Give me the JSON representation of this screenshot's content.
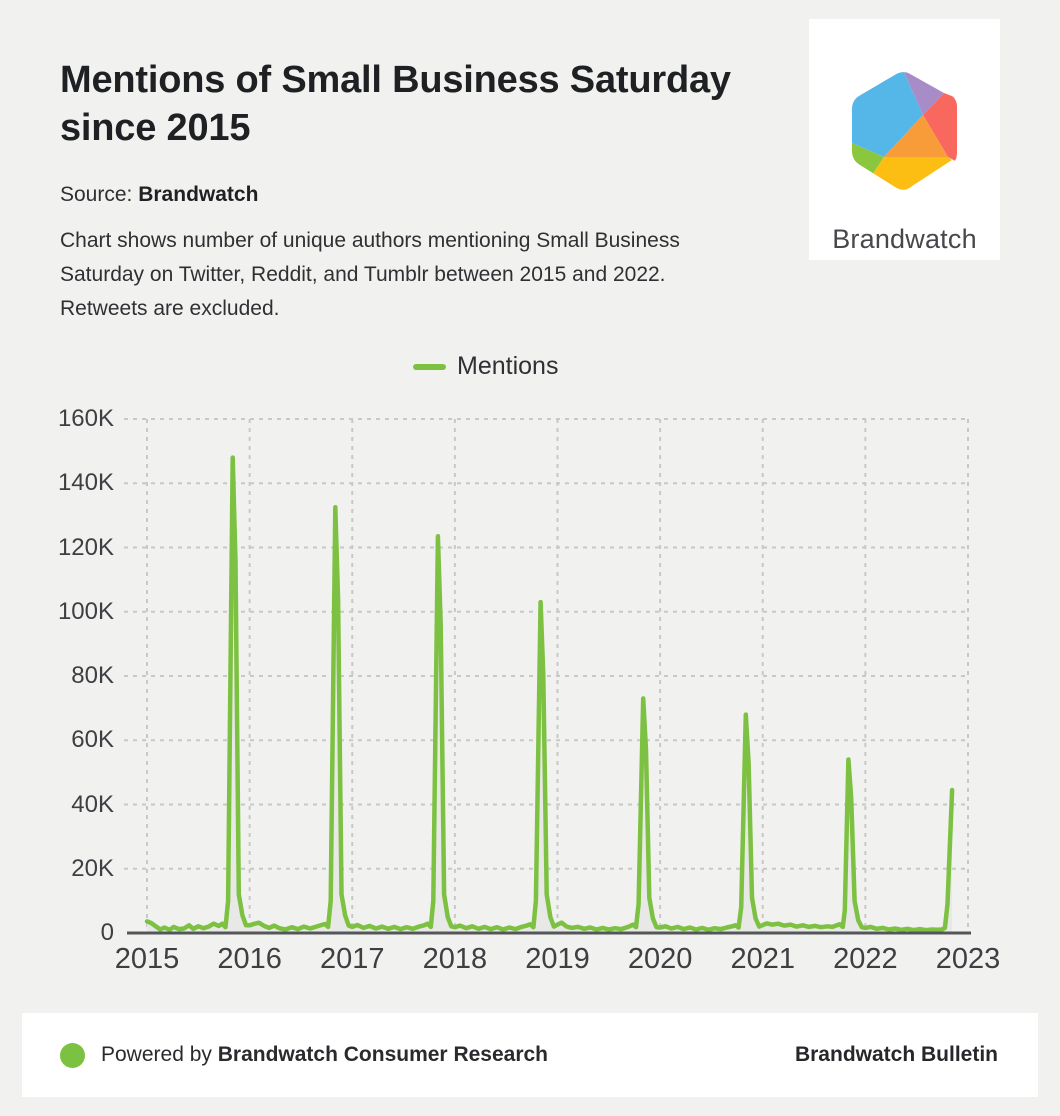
{
  "page": {
    "background": "#F1F1EF"
  },
  "header": {
    "title_lines": [
      "Mentions of Small Business Saturday",
      "since 2015"
    ],
    "source_label": "Source: ",
    "source_name": "Brandwatch",
    "description_lines": [
      "Chart shows number of unique authors mentioning Small Business",
      "Saturday on Twitter, Reddit, and Tumblr between 2015 and 2022.",
      "Retweets are excluded."
    ]
  },
  "logo_card": {
    "wordmark": "Brandwatch",
    "colors": {
      "blue": "#55B7E8",
      "purple": "#A88CC7",
      "coral": "#F9685E",
      "orange": "#F89C3A",
      "yellow": "#FCBE12",
      "green": "#8BC63F"
    }
  },
  "legend": {
    "items": [
      {
        "label": "Mentions",
        "color": "#7DC142"
      }
    ]
  },
  "chart_data": {
    "type": "area",
    "title": "Mentions of Small Business Saturday since 2015",
    "xlabel": "",
    "ylabel": "",
    "unit": "unique authors, thousands",
    "grid": "dashed",
    "legend_position": "top",
    "x_range_years": [
      2015,
      2023
    ],
    "y_range_thousands": [
      0,
      160
    ],
    "x_ticks": [
      "2015",
      "2016",
      "2017",
      "2018",
      "2019",
      "2020",
      "2021",
      "2022",
      "2023"
    ],
    "y_ticks": [
      {
        "label": "160K",
        "value": 160
      },
      {
        "label": "140K",
        "value": 140
      },
      {
        "label": "120K",
        "value": 120
      },
      {
        "label": "100K",
        "value": 100
      },
      {
        "label": "80K",
        "value": 80
      },
      {
        "label": "60K",
        "value": 60
      },
      {
        "label": "40K",
        "value": 40
      },
      {
        "label": "20K",
        "value": 20
      },
      {
        "label": "0",
        "value": 0
      }
    ],
    "annual_peaks_thousands": {
      "2015": 148,
      "2016": 132.5,
      "2017": 123.5,
      "2018": 103,
      "2019": 73,
      "2020": 68,
      "2021": 54,
      "2022_partial_end": 44.5
    },
    "series": [
      {
        "name": "Mentions",
        "color": "#7DC142",
        "area_fill": "#E8E8E6",
        "points_year_value_thousands": [
          [
            2015.0,
            3.6
          ],
          [
            2015.04,
            3.1
          ],
          [
            2015.09,
            2.0
          ],
          [
            2015.13,
            1.1
          ],
          [
            2015.17,
            1.7
          ],
          [
            2015.22,
            1.0
          ],
          [
            2015.26,
            1.9
          ],
          [
            2015.31,
            1.2
          ],
          [
            2015.36,
            1.4
          ],
          [
            2015.41,
            2.4
          ],
          [
            2015.45,
            1.3
          ],
          [
            2015.5,
            2.1
          ],
          [
            2015.55,
            1.5
          ],
          [
            2015.6,
            2.0
          ],
          [
            2015.65,
            2.9
          ],
          [
            2015.7,
            2.2
          ],
          [
            2015.735,
            2.9
          ],
          [
            2015.765,
            1.8
          ],
          [
            2015.79,
            10
          ],
          [
            2015.835,
            148
          ],
          [
            2015.862,
            115.5
          ],
          [
            2015.895,
            12
          ],
          [
            2015.93,
            5.5
          ],
          [
            2015.965,
            2.4
          ],
          [
            2016.0,
            2.4
          ],
          [
            2016.05,
            2.9
          ],
          [
            2016.09,
            3.2
          ],
          [
            2016.14,
            2.2
          ],
          [
            2016.19,
            1.6
          ],
          [
            2016.24,
            2.3
          ],
          [
            2016.29,
            1.5
          ],
          [
            2016.35,
            1.1
          ],
          [
            2016.41,
            1.8
          ],
          [
            2016.47,
            1.2
          ],
          [
            2016.53,
            2.0
          ],
          [
            2016.59,
            1.4
          ],
          [
            2016.65,
            2.0
          ],
          [
            2016.7,
            2.5
          ],
          [
            2016.735,
            2.8
          ],
          [
            2016.765,
            1.9
          ],
          [
            2016.79,
            10
          ],
          [
            2016.835,
            132.5
          ],
          [
            2016.862,
            103.5
          ],
          [
            2016.895,
            12
          ],
          [
            2016.93,
            5.5
          ],
          [
            2016.965,
            2.3
          ],
          [
            2017.0,
            1.9
          ],
          [
            2017.05,
            2.5
          ],
          [
            2017.11,
            1.6
          ],
          [
            2017.17,
            2.2
          ],
          [
            2017.23,
            1.4
          ],
          [
            2017.29,
            2.0
          ],
          [
            2017.35,
            1.3
          ],
          [
            2017.41,
            1.9
          ],
          [
            2017.47,
            1.2
          ],
          [
            2017.53,
            1.8
          ],
          [
            2017.59,
            1.3
          ],
          [
            2017.65,
            2.0
          ],
          [
            2017.7,
            2.4
          ],
          [
            2017.735,
            2.9
          ],
          [
            2017.765,
            1.9
          ],
          [
            2017.79,
            10
          ],
          [
            2017.835,
            123.5
          ],
          [
            2017.862,
            96
          ],
          [
            2017.895,
            12
          ],
          [
            2017.93,
            5.0
          ],
          [
            2017.965,
            2.1
          ],
          [
            2018.0,
            1.8
          ],
          [
            2018.05,
            2.3
          ],
          [
            2018.11,
            1.5
          ],
          [
            2018.17,
            2.1
          ],
          [
            2018.23,
            1.3
          ],
          [
            2018.29,
            1.9
          ],
          [
            2018.35,
            1.2
          ],
          [
            2018.41,
            1.8
          ],
          [
            2018.47,
            1.1
          ],
          [
            2018.53,
            1.7
          ],
          [
            2018.59,
            1.2
          ],
          [
            2018.65,
            1.9
          ],
          [
            2018.7,
            2.3
          ],
          [
            2018.735,
            2.7
          ],
          [
            2018.765,
            1.8
          ],
          [
            2018.79,
            10
          ],
          [
            2018.835,
            103
          ],
          [
            2018.862,
            80
          ],
          [
            2018.895,
            12
          ],
          [
            2018.93,
            5.0
          ],
          [
            2018.965,
            2.0
          ],
          [
            2019.0,
            2.6
          ],
          [
            2019.04,
            3.2
          ],
          [
            2019.09,
            2.0
          ],
          [
            2019.14,
            1.6
          ],
          [
            2019.2,
            1.9
          ],
          [
            2019.26,
            1.3
          ],
          [
            2019.32,
            1.7
          ],
          [
            2019.38,
            1.1
          ],
          [
            2019.44,
            1.6
          ],
          [
            2019.5,
            1.1
          ],
          [
            2019.56,
            1.5
          ],
          [
            2019.62,
            1.2
          ],
          [
            2019.68,
            1.8
          ],
          [
            2019.71,
            2.2
          ],
          [
            2019.735,
            2.6
          ],
          [
            2019.765,
            1.8
          ],
          [
            2019.79,
            9
          ],
          [
            2019.835,
            73
          ],
          [
            2019.862,
            57
          ],
          [
            2019.895,
            11
          ],
          [
            2019.93,
            4.5
          ],
          [
            2019.965,
            1.8
          ],
          [
            2020.0,
            1.7
          ],
          [
            2020.05,
            2.1
          ],
          [
            2020.11,
            1.4
          ],
          [
            2020.17,
            1.9
          ],
          [
            2020.23,
            1.2
          ],
          [
            2020.29,
            1.7
          ],
          [
            2020.35,
            1.1
          ],
          [
            2020.41,
            1.6
          ],
          [
            2020.47,
            1.0
          ],
          [
            2020.53,
            1.5
          ],
          [
            2020.59,
            1.2
          ],
          [
            2020.65,
            1.7
          ],
          [
            2020.7,
            2.1
          ],
          [
            2020.735,
            2.4
          ],
          [
            2020.765,
            1.7
          ],
          [
            2020.79,
            8
          ],
          [
            2020.835,
            68
          ],
          [
            2020.862,
            53
          ],
          [
            2020.895,
            11
          ],
          [
            2020.93,
            4.5
          ],
          [
            2020.965,
            2.0
          ],
          [
            2021.0,
            2.5
          ],
          [
            2021.04,
            3.0
          ],
          [
            2021.09,
            2.6
          ],
          [
            2021.15,
            2.9
          ],
          [
            2021.21,
            2.3
          ],
          [
            2021.27,
            2.6
          ],
          [
            2021.33,
            2.0
          ],
          [
            2021.39,
            2.4
          ],
          [
            2021.45,
            1.9
          ],
          [
            2021.51,
            2.2
          ],
          [
            2021.57,
            1.8
          ],
          [
            2021.63,
            2.1
          ],
          [
            2021.68,
            1.9
          ],
          [
            2021.72,
            2.4
          ],
          [
            2021.75,
            2.7
          ],
          [
            2021.78,
            1.9
          ],
          [
            2021.8,
            7
          ],
          [
            2021.835,
            54
          ],
          [
            2021.862,
            42
          ],
          [
            2021.895,
            10
          ],
          [
            2021.93,
            4.0
          ],
          [
            2021.965,
            1.8
          ],
          [
            2022.0,
            1.6
          ],
          [
            2022.05,
            1.9
          ],
          [
            2022.11,
            1.3
          ],
          [
            2022.17,
            1.6
          ],
          [
            2022.23,
            1.1
          ],
          [
            2022.29,
            1.4
          ],
          [
            2022.35,
            1.0
          ],
          [
            2022.41,
            1.3
          ],
          [
            2022.47,
            0.9
          ],
          [
            2022.53,
            1.2
          ],
          [
            2022.59,
            0.9
          ],
          [
            2022.65,
            1.1
          ],
          [
            2022.7,
            1.0
          ],
          [
            2022.745,
            1.1
          ],
          [
            2022.775,
            1.6
          ],
          [
            2022.8,
            9
          ],
          [
            2022.845,
            44.5
          ]
        ]
      }
    ],
    "style": {
      "grid_color": "#C8C8C6",
      "axis_color": "#55565A",
      "line_width": 4.5
    }
  },
  "footer": {
    "dot_color": "#7DC142",
    "powered_prefix": "Powered by ",
    "powered_bold": "Brandwatch Consumer Research",
    "right_text": "Brandwatch Bulletin"
  }
}
